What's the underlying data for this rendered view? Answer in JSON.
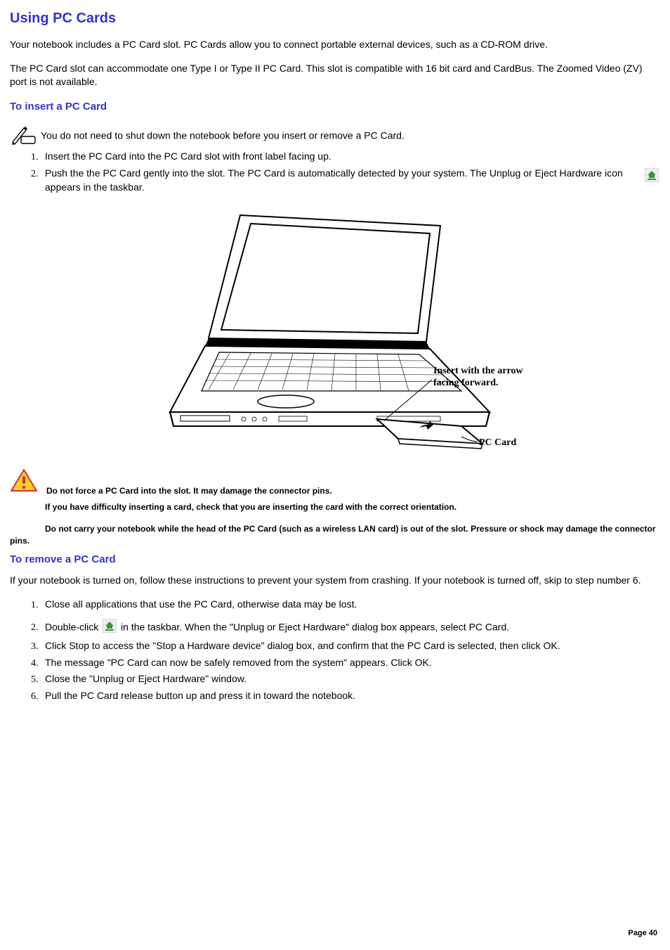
{
  "page": {
    "title": "Using PC Cards",
    "intro1": "Your notebook includes a PC Card slot. PC Cards allow you to connect portable external devices, such as a CD-ROM drive.",
    "intro2": "The PC Card slot can accommodate one Type I or Type II PC Card. This slot is compatible with 16 bit card and CardBus. The Zoomed Video (ZV) port is not available.",
    "section_insert_title": "To insert a PC Card",
    "note_text": "You do not need to shut down the notebook before you insert or remove a PC Card.",
    "insert_steps": [
      "Insert the PC Card into the PC Card slot with front label facing up.",
      "Push the the PC Card gently into the slot. The PC Card is automatically detected by your system. The Unplug or Eject Hardware icon appears in the taskbar."
    ],
    "illustration_labels": {
      "arrow_text1": "Insert with the arrow",
      "arrow_text2": "facing forward.",
      "pc_card_label": "PC Card"
    },
    "warnings": [
      "Do not force a PC Card into the slot. It may damage the connector pins.",
      "If you have difficulty inserting a card, check that you are inserting the card with the correct orientation.",
      "Do not carry your notebook while the head of the PC Card (such as a wireless LAN card) is out of the slot. Pressure or shock may damage the connector pins."
    ],
    "section_remove_title": "To remove a PC Card",
    "remove_intro": "If your notebook is turned on, follow these instructions to prevent your system from crashing. If your notebook is turned off, skip to step number 6.",
    "remove_steps": {
      "s1": "Close all applications that use the PC Card, otherwise data may be lost.",
      "s2a": "Double-click ",
      "s2b": " in the taskbar. When the \"Unplug or Eject Hardware\" dialog box appears, select PC Card.",
      "s3": "Click Stop to access the \"Stop a Hardware device\" dialog box, and confirm that the PC Card is selected, then click OK.",
      "s4": "The message \"PC Card can now be safely removed from the system\" appears. Click OK.",
      "s5": "Close the \"Unplug or Eject Hardware\" window.",
      "s6": "Pull the PC Card release button up and press it in toward the notebook."
    },
    "page_number": "Page 40"
  },
  "colors": {
    "heading": "#3333cc",
    "text": "#000000",
    "warning_tri_fill": "#ffcc33",
    "warning_tri_stroke": "#cc3333",
    "eject_icon_bg": "#eeeeee",
    "eject_icon_arrow": "#339933"
  }
}
